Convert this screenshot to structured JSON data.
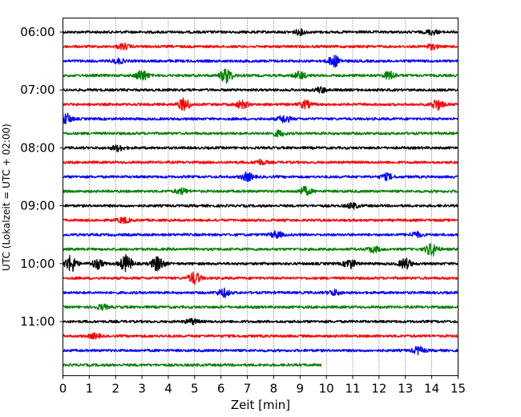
{
  "chart_data": {
    "type": "line",
    "title": "",
    "xlabel": "Zeit  [min]",
    "ylabel": "UTC (Lokalzeit = UTC + 02:00)",
    "xlim": [
      0,
      15
    ],
    "x_ticks": [
      "0",
      "1",
      "2",
      "3",
      "4",
      "5",
      "6",
      "7",
      "8",
      "9",
      "10",
      "11",
      "12",
      "13",
      "14",
      "15"
    ],
    "y_ticks": [
      {
        "label": "06:00",
        "trace": 0
      },
      {
        "label": "07:00",
        "trace": 4
      },
      {
        "label": "08:00",
        "trace": 8
      },
      {
        "label": "09:00",
        "trace": 12
      },
      {
        "label": "10:00",
        "trace": 16
      },
      {
        "label": "11:00",
        "trace": 20
      }
    ],
    "grid": "vertical dotted at each minute",
    "trace_interval_min": 15,
    "trace_colors": [
      "#000000",
      "#ff0000",
      "#0000ff",
      "#008000"
    ],
    "traces": [
      {
        "start": "06:00",
        "end_min": 15,
        "events": [
          [
            9.0,
            1.3
          ],
          [
            14.0,
            1.4
          ]
        ]
      },
      {
        "start": "06:15",
        "end_min": 15,
        "events": [
          [
            2.3,
            1.5
          ],
          [
            14.0,
            1.3
          ]
        ]
      },
      {
        "start": "06:30",
        "end_min": 15,
        "events": [
          [
            2.1,
            1.3
          ],
          [
            10.3,
            3.0
          ]
        ]
      },
      {
        "start": "06:45",
        "end_min": 15,
        "events": [
          [
            3.0,
            3.0
          ],
          [
            6.2,
            4.0
          ],
          [
            9.0,
            2.0
          ],
          [
            12.4,
            2.2
          ]
        ]
      },
      {
        "start": "07:00",
        "end_min": 15,
        "events": [
          [
            9.8,
            1.4
          ]
        ]
      },
      {
        "start": "07:15",
        "end_min": 15,
        "events": [
          [
            4.6,
            3.3
          ],
          [
            6.8,
            2.0
          ],
          [
            9.2,
            2.0
          ],
          [
            14.2,
            2.8
          ]
        ]
      },
      {
        "start": "07:30",
        "end_min": 15,
        "events": [
          [
            0.1,
            3.0
          ],
          [
            8.4,
            2.0
          ]
        ]
      },
      {
        "start": "07:45",
        "end_min": 15,
        "events": [
          [
            8.2,
            1.5
          ]
        ]
      },
      {
        "start": "08:00",
        "end_min": 15,
        "events": [
          [
            2.1,
            1.5
          ]
        ]
      },
      {
        "start": "08:15",
        "end_min": 15,
        "events": [
          [
            7.5,
            1.3
          ]
        ]
      },
      {
        "start": "08:30",
        "end_min": 15,
        "events": [
          [
            7.0,
            2.2
          ],
          [
            12.3,
            1.6
          ]
        ]
      },
      {
        "start": "08:45",
        "end_min": 15,
        "events": [
          [
            4.5,
            1.5
          ],
          [
            9.2,
            2.2
          ]
        ]
      },
      {
        "start": "09:00",
        "end_min": 15,
        "events": [
          [
            11.0,
            1.4
          ]
        ]
      },
      {
        "start": "09:15",
        "end_min": 15,
        "events": [
          [
            2.3,
            1.5
          ]
        ]
      },
      {
        "start": "09:30",
        "end_min": 15,
        "events": [
          [
            8.1,
            1.8
          ],
          [
            13.4,
            1.5
          ]
        ]
      },
      {
        "start": "09:45",
        "end_min": 15,
        "events": [
          [
            11.8,
            1.6
          ],
          [
            14.0,
            3.5
          ]
        ]
      },
      {
        "start": "10:00",
        "end_min": 15,
        "events": [
          [
            0.3,
            4.5
          ],
          [
            1.3,
            2.5
          ],
          [
            2.4,
            4.5
          ],
          [
            3.6,
            4.2
          ],
          [
            10.9,
            2.5
          ],
          [
            13.0,
            2.8
          ]
        ]
      },
      {
        "start": "10:15",
        "end_min": 15,
        "events": [
          [
            5.0,
            3.2
          ]
        ]
      },
      {
        "start": "10:30",
        "end_min": 15,
        "events": [
          [
            6.1,
            2.2
          ],
          [
            10.3,
            1.5
          ]
        ]
      },
      {
        "start": "10:45",
        "end_min": 15,
        "events": [
          [
            1.5,
            1.3
          ]
        ]
      },
      {
        "start": "11:00",
        "end_min": 15,
        "events": [
          [
            4.9,
            1.4
          ]
        ]
      },
      {
        "start": "11:15",
        "end_min": 15,
        "events": [
          [
            1.2,
            1.3
          ]
        ]
      },
      {
        "start": "11:30",
        "end_min": 15,
        "events": [
          [
            13.5,
            2.0
          ]
        ]
      },
      {
        "start": "11:45",
        "end_min": 9.8,
        "events": []
      }
    ]
  }
}
